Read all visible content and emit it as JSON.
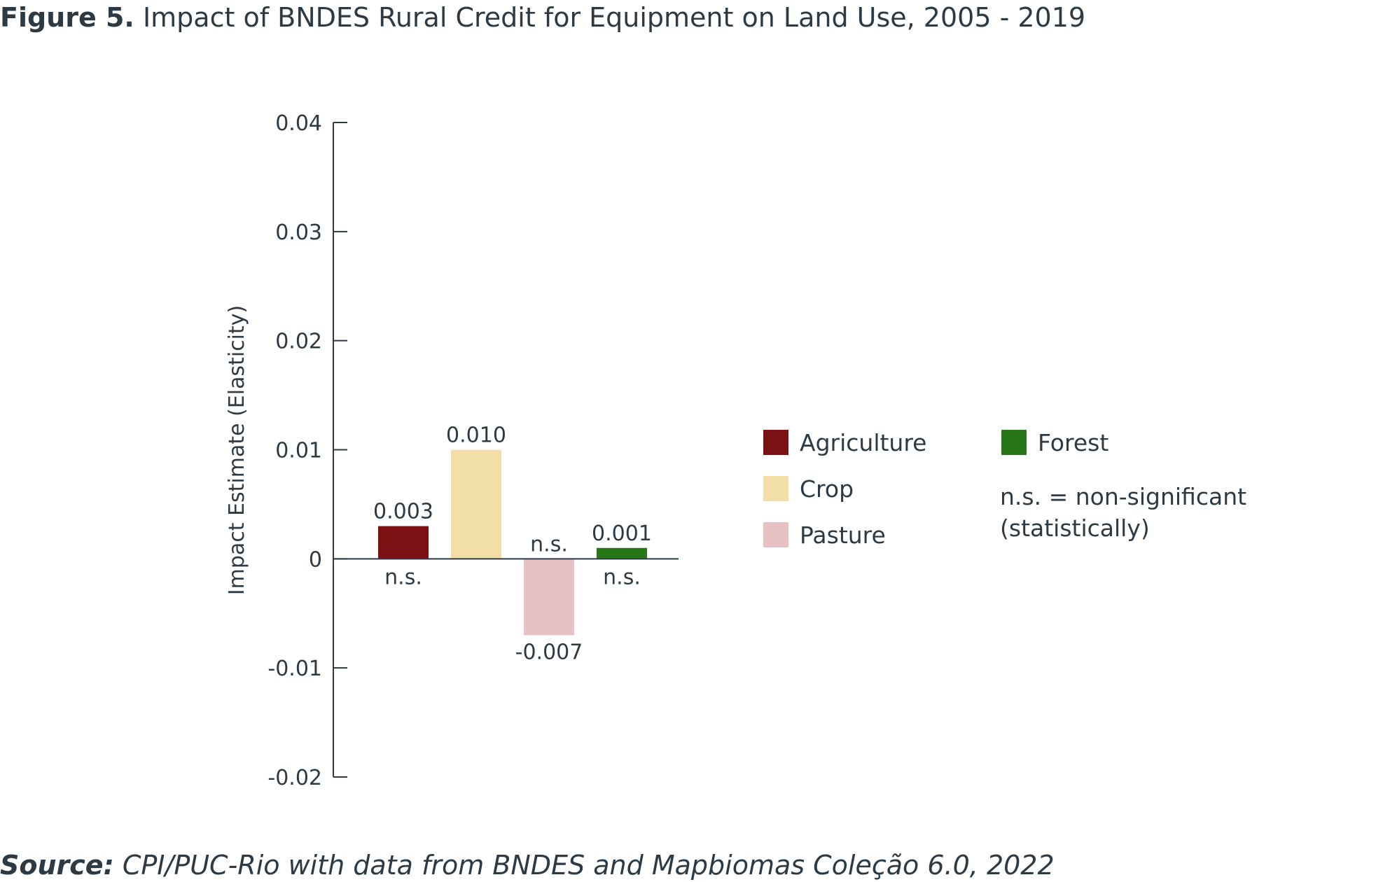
{
  "figure": {
    "title_bold": "Figure 5.",
    "title_text": "Impact of BNDES Rural Credit for Equipment on Land Use, 2005 - 2019",
    "source_bold": "Source:",
    "source_text": "CPI/PUC-Rio with data from BNDES and Mapbiomas Coleção 6.0, 2022"
  },
  "chart_data": {
    "type": "bar",
    "ylabel": "Impact Estimate (Elasticity)",
    "ylim": [
      -0.02,
      0.04
    ],
    "yticks": [
      -0.02,
      -0.01,
      0,
      0.01,
      0.02,
      0.03,
      0.04
    ],
    "ytick_labels": [
      "-0.02",
      "-0.01",
      "0",
      "0.01",
      "0.02",
      "0.03",
      "0.04"
    ],
    "grid": false,
    "legend_position": "right",
    "series": [
      {
        "name": "Agriculture",
        "value": 0.003,
        "value_label": "0.003",
        "note": "n.s.",
        "color": "#7b1113"
      },
      {
        "name": "Crop",
        "value": 0.01,
        "value_label": "0.010",
        "note": "",
        "color": "#f2dfa7"
      },
      {
        "name": "Pasture",
        "value": -0.007,
        "value_label": "-0.007",
        "note": "n.s.",
        "color": "#e8c1c4"
      },
      {
        "name": "Forest",
        "value": 0.001,
        "value_label": "0.001",
        "note": "n.s.",
        "color": "#277618"
      }
    ],
    "legend_note_line1": "n.s. = non-significant",
    "legend_note_line2": "(statistically)"
  }
}
